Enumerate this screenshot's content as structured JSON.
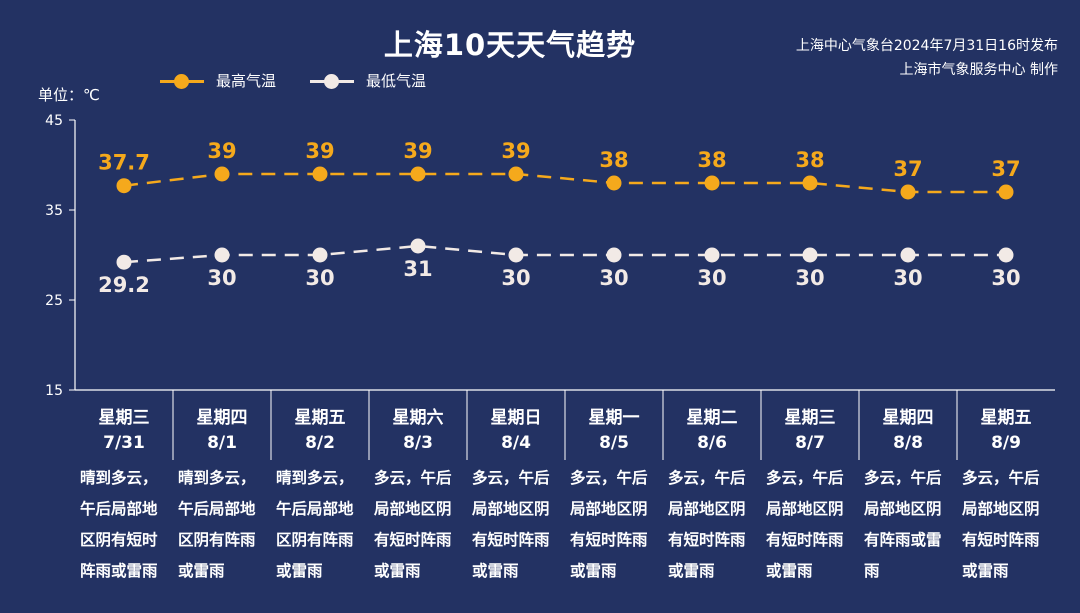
{
  "title": "上海10天天气趋势",
  "publisher": {
    "line1": "上海中心气象台2024年7月31日16时发布",
    "line2": "上海市气象服务中心 制作"
  },
  "unit_label": "单位：℃",
  "colors": {
    "background": "#233263",
    "high": "#F5A91C",
    "low": "#F2EAE6",
    "axis": "#FFFFFF"
  },
  "chart_data": {
    "type": "line",
    "title": "上海10天天气趋势",
    "ylabel": "单位：℃",
    "ylim": [
      15,
      45
    ],
    "yticks": [
      15,
      25,
      35,
      45
    ],
    "grid": false,
    "legend_position": "top-left",
    "categories": [
      "7/31",
      "8/1",
      "8/2",
      "8/3",
      "8/4",
      "8/5",
      "8/6",
      "8/7",
      "8/8",
      "8/9"
    ],
    "weekdays": [
      "星期三",
      "星期四",
      "星期五",
      "星期六",
      "星期日",
      "星期一",
      "星期二",
      "星期三",
      "星期四",
      "星期五"
    ],
    "series": [
      {
        "name": "最高气温",
        "values": [
          37.7,
          39,
          39,
          39,
          39,
          38,
          38,
          38,
          37,
          37
        ],
        "labels": [
          "37.7",
          "39",
          "39",
          "39",
          "39",
          "38",
          "38",
          "38",
          "37",
          "37"
        ]
      },
      {
        "name": "最低气温",
        "values": [
          29.2,
          30,
          30,
          31,
          30,
          30,
          30,
          30,
          30,
          30
        ],
        "labels": [
          "29.2",
          "30",
          "30",
          "31",
          "30",
          "30",
          "30",
          "30",
          "30",
          "30"
        ]
      }
    ],
    "descriptions": [
      [
        "晴到多云，",
        "午后局部地",
        "区阴有短时",
        "阵雨或雷雨"
      ],
      [
        "晴到多云，",
        "午后局部地",
        "区阴有阵雨",
        "或雷雨"
      ],
      [
        "晴到多云，",
        "午后局部地",
        "区阴有阵雨",
        "或雷雨"
      ],
      [
        "多云，午后",
        "局部地区阴",
        "有短时阵雨",
        "或雷雨"
      ],
      [
        "多云，午后",
        "局部地区阴",
        "有短时阵雨",
        "或雷雨"
      ],
      [
        "多云，午后",
        "局部地区阴",
        "有短时阵雨",
        "或雷雨"
      ],
      [
        "多云，午后",
        "局部地区阴",
        "有短时阵雨",
        "或雷雨"
      ],
      [
        "多云，午后",
        "局部地区阴",
        "有短时阵雨",
        "或雷雨"
      ],
      [
        "多云，午后",
        "局部地区阴",
        "有阵雨或雷",
        "雨"
      ],
      [
        "多云，午后",
        "局部地区阴",
        "有短时阵雨",
        "或雷雨"
      ]
    ]
  }
}
